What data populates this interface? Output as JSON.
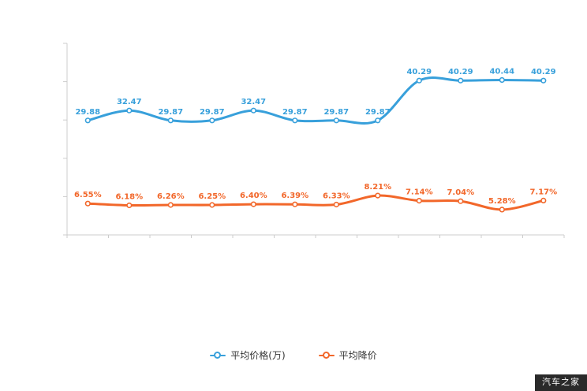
{
  "chart_data": {
    "type": "line",
    "title": "",
    "xlabel": "",
    "ylabel": "",
    "x_tick_count": 12,
    "categories": [
      "",
      "",
      "",
      "",
      "",
      "",
      "",
      "",
      "",
      "",
      "",
      ""
    ],
    "series": [
      {
        "name": "平均价格(万)",
        "color": "#38a0db",
        "axis": "left",
        "values": [
          29.88,
          32.47,
          29.87,
          29.87,
          32.47,
          29.87,
          29.87,
          29.87,
          40.29,
          40.29,
          40.44,
          40.29
        ],
        "labels": [
          "29.88",
          "32.47",
          "29.87",
          "29.87",
          "32.47",
          "29.87",
          "29.87",
          "29.87",
          "40.29",
          "40.29",
          "40.44",
          "40.29"
        ]
      },
      {
        "name": "平均降价",
        "color": "#f2672a",
        "axis": "right",
        "values": [
          6.55,
          6.18,
          6.26,
          6.25,
          6.4,
          6.39,
          6.33,
          8.21,
          7.14,
          7.04,
          5.28,
          7.17
        ],
        "labels": [
          "6.55%",
          "6.18%",
          "6.26%",
          "6.25%",
          "6.40%",
          "6.39%",
          "6.33%",
          "8.21%",
          "7.14%",
          "7.04%",
          "5.28%",
          "7.17%"
        ]
      }
    ],
    "y_left_range": [
      0,
      50
    ],
    "y_right_range": [
      0,
      40
    ],
    "grid": false,
    "smooth": true,
    "axis_color": "#cccccc",
    "legend_position": "bottom"
  },
  "legend": {
    "items": [
      {
        "label": "平均价格(万)",
        "color": "#38a0db"
      },
      {
        "label": "平均降价",
        "color": "#f2672a"
      }
    ]
  },
  "watermark": {
    "text": "汽车之家"
  }
}
